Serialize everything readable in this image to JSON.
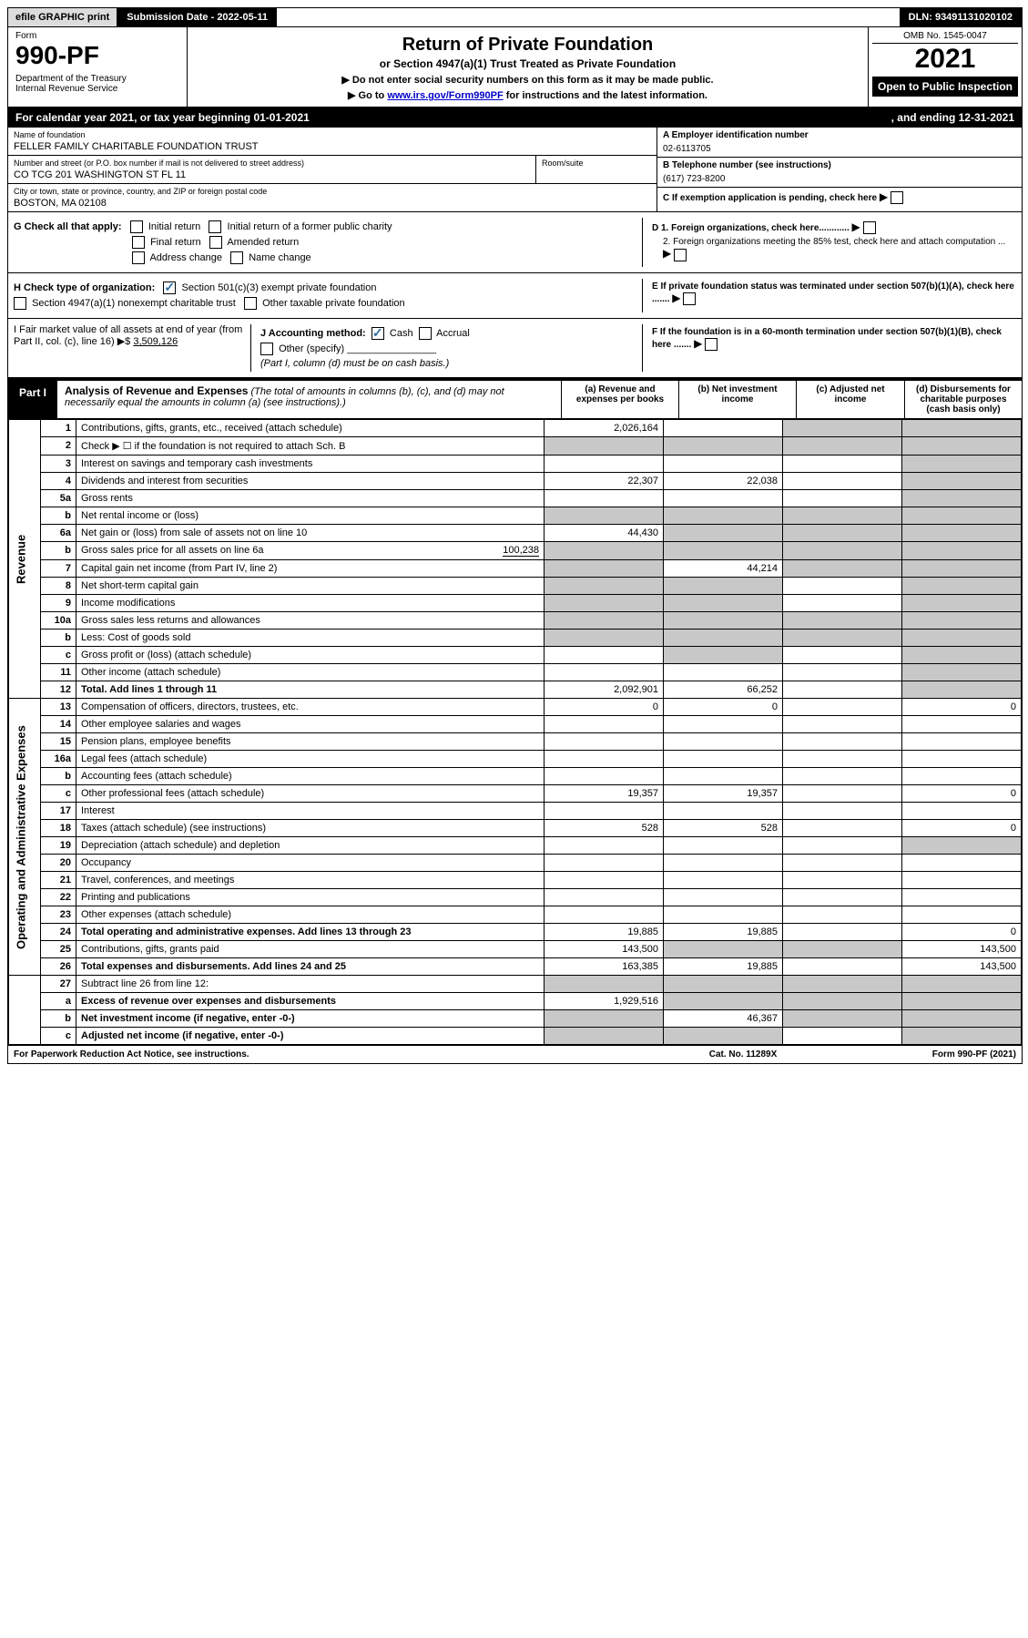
{
  "topbar": {
    "efile": "efile GRAPHIC print",
    "subdate_label": "Submission Date - 2022-05-11",
    "dln": "DLN: 93491131020102"
  },
  "header": {
    "form_label": "Form",
    "form_number": "990-PF",
    "dept": "Department of the Treasury\nInternal Revenue Service",
    "title": "Return of Private Foundation",
    "subtitle": "or Section 4947(a)(1) Trust Treated as Private Foundation",
    "note1": "▶ Do not enter social security numbers on this form as it may be made public.",
    "note2_pre": "▶ Go to ",
    "note2_link": "www.irs.gov/Form990PF",
    "note2_post": " for instructions and the latest information.",
    "omb": "OMB No. 1545-0047",
    "year": "2021",
    "open": "Open to Public Inspection"
  },
  "calendar": {
    "left": "For calendar year 2021, or tax year beginning 01-01-2021",
    "right": ", and ending 12-31-2021"
  },
  "info": {
    "name_label": "Name of foundation",
    "name_value": "FELLER FAMILY CHARITABLE FOUNDATION TRUST",
    "addr_label": "Number and street (or P.O. box number if mail is not delivered to street address)",
    "addr_value": "CO TCG 201 WASHINGTON ST FL 11",
    "room_label": "Room/suite",
    "city_label": "City or town, state or province, country, and ZIP or foreign postal code",
    "city_value": "BOSTON, MA  02108",
    "ein_label": "A Employer identification number",
    "ein_value": "02-6113705",
    "phone_label": "B Telephone number (see instructions)",
    "phone_value": "(617) 723-8200",
    "c_label": "C If exemption application is pending, check here",
    "d1_label": "D 1. Foreign organizations, check here............",
    "d2_label": "2. Foreign organizations meeting the 85% test, check here and attach computation ...",
    "e_label": "E If private foundation status was terminated under section 507(b)(1)(A), check here .......",
    "f_label": "F If the foundation is in a 60-month termination under section 507(b)(1)(B), check here .......",
    "g_label": "G Check all that apply:",
    "g_initial": "Initial return",
    "g_initial_former": "Initial return of a former public charity",
    "g_final": "Final return",
    "g_amended": "Amended return",
    "g_address": "Address change",
    "g_name": "Name change",
    "h_label": "H Check type of organization:",
    "h_501c3": "Section 501(c)(3) exempt private foundation",
    "h_4947": "Section 4947(a)(1) nonexempt charitable trust",
    "h_other": "Other taxable private foundation",
    "i_label": "I Fair market value of all assets at end of year (from Part II, col. (c), line 16) ▶$",
    "i_value": "3,509,126",
    "j_label": "J Accounting method:",
    "j_cash": "Cash",
    "j_accrual": "Accrual",
    "j_other": "Other (specify)",
    "j_note": "(Part I, column (d) must be on cash basis.)"
  },
  "part1": {
    "label": "Part I",
    "title": "Analysis of Revenue and Expenses",
    "title_note": "(The total of amounts in columns (b), (c), and (d) may not necessarily equal the amounts in column (a) (see instructions).)",
    "col_a": "(a) Revenue and expenses per books",
    "col_b": "(b) Net investment income",
    "col_c": "(c) Adjusted net income",
    "col_d": "(d) Disbursements for charitable purposes (cash basis only)"
  },
  "side_labels": {
    "revenue": "Revenue",
    "expenses": "Operating and Administrative Expenses"
  },
  "rows": [
    {
      "n": "1",
      "desc": "Contributions, gifts, grants, etc., received (attach schedule)",
      "a": "2,026,164",
      "b": "",
      "c": "grey",
      "d": "grey"
    },
    {
      "n": "2",
      "desc": "Check ▶ ☐ if the foundation is not required to attach Sch. B",
      "a": "grey",
      "b": "grey",
      "c": "grey",
      "d": "grey"
    },
    {
      "n": "3",
      "desc": "Interest on savings and temporary cash investments",
      "a": "",
      "b": "",
      "c": "",
      "d": "grey"
    },
    {
      "n": "4",
      "desc": "Dividends and interest from securities",
      "a": "22,307",
      "b": "22,038",
      "c": "",
      "d": "grey"
    },
    {
      "n": "5a",
      "desc": "Gross rents",
      "a": "",
      "b": "",
      "c": "",
      "d": "grey"
    },
    {
      "n": "b",
      "desc": "Net rental income or (loss)",
      "a": "grey",
      "b": "grey",
      "c": "grey",
      "d": "grey",
      "inline": true
    },
    {
      "n": "6a",
      "desc": "Net gain or (loss) from sale of assets not on line 10",
      "a": "44,430",
      "b": "grey",
      "c": "grey",
      "d": "grey"
    },
    {
      "n": "b",
      "desc": "Gross sales price for all assets on line 6a",
      "inline_val": "100,238",
      "a": "grey",
      "b": "grey",
      "c": "grey",
      "d": "grey"
    },
    {
      "n": "7",
      "desc": "Capital gain net income (from Part IV, line 2)",
      "a": "grey",
      "b": "44,214",
      "c": "grey",
      "d": "grey"
    },
    {
      "n": "8",
      "desc": "Net short-term capital gain",
      "a": "grey",
      "b": "grey",
      "c": "",
      "d": "grey"
    },
    {
      "n": "9",
      "desc": "Income modifications",
      "a": "grey",
      "b": "grey",
      "c": "",
      "d": "grey"
    },
    {
      "n": "10a",
      "desc": "Gross sales less returns and allowances",
      "a": "grey",
      "b": "grey",
      "c": "grey",
      "d": "grey",
      "inline": true
    },
    {
      "n": "b",
      "desc": "Less: Cost of goods sold",
      "a": "grey",
      "b": "grey",
      "c": "grey",
      "d": "grey",
      "inline": true
    },
    {
      "n": "c",
      "desc": "Gross profit or (loss) (attach schedule)",
      "a": "",
      "b": "grey",
      "c": "",
      "d": "grey"
    },
    {
      "n": "11",
      "desc": "Other income (attach schedule)",
      "a": "",
      "b": "",
      "c": "",
      "d": "grey"
    },
    {
      "n": "12",
      "desc": "Total. Add lines 1 through 11",
      "a": "2,092,901",
      "b": "66,252",
      "c": "",
      "d": "grey",
      "bold": true
    }
  ],
  "exp_rows": [
    {
      "n": "13",
      "desc": "Compensation of officers, directors, trustees, etc.",
      "a": "0",
      "b": "0",
      "c": "",
      "d": "0"
    },
    {
      "n": "14",
      "desc": "Other employee salaries and wages",
      "a": "",
      "b": "",
      "c": "",
      "d": ""
    },
    {
      "n": "15",
      "desc": "Pension plans, employee benefits",
      "a": "",
      "b": "",
      "c": "",
      "d": ""
    },
    {
      "n": "16a",
      "desc": "Legal fees (attach schedule)",
      "a": "",
      "b": "",
      "c": "",
      "d": ""
    },
    {
      "n": "b",
      "desc": "Accounting fees (attach schedule)",
      "a": "",
      "b": "",
      "c": "",
      "d": ""
    },
    {
      "n": "c",
      "desc": "Other professional fees (attach schedule)",
      "a": "19,357",
      "b": "19,357",
      "c": "",
      "d": "0"
    },
    {
      "n": "17",
      "desc": "Interest",
      "a": "",
      "b": "",
      "c": "",
      "d": ""
    },
    {
      "n": "18",
      "desc": "Taxes (attach schedule) (see instructions)",
      "a": "528",
      "b": "528",
      "c": "",
      "d": "0"
    },
    {
      "n": "19",
      "desc": "Depreciation (attach schedule) and depletion",
      "a": "",
      "b": "",
      "c": "",
      "d": "grey"
    },
    {
      "n": "20",
      "desc": "Occupancy",
      "a": "",
      "b": "",
      "c": "",
      "d": ""
    },
    {
      "n": "21",
      "desc": "Travel, conferences, and meetings",
      "a": "",
      "b": "",
      "c": "",
      "d": ""
    },
    {
      "n": "22",
      "desc": "Printing and publications",
      "a": "",
      "b": "",
      "c": "",
      "d": ""
    },
    {
      "n": "23",
      "desc": "Other expenses (attach schedule)",
      "a": "",
      "b": "",
      "c": "",
      "d": ""
    },
    {
      "n": "24",
      "desc": "Total operating and administrative expenses. Add lines 13 through 23",
      "a": "19,885",
      "b": "19,885",
      "c": "",
      "d": "0",
      "bold": true
    },
    {
      "n": "25",
      "desc": "Contributions, gifts, grants paid",
      "a": "143,500",
      "b": "grey",
      "c": "grey",
      "d": "143,500"
    },
    {
      "n": "26",
      "desc": "Total expenses and disbursements. Add lines 24 and 25",
      "a": "163,385",
      "b": "19,885",
      "c": "",
      "d": "143,500",
      "bold": true
    }
  ],
  "final_rows": [
    {
      "n": "27",
      "desc": "Subtract line 26 from line 12:",
      "a": "grey",
      "b": "grey",
      "c": "grey",
      "d": "grey"
    },
    {
      "n": "a",
      "desc": "Excess of revenue over expenses and disbursements",
      "a": "1,929,516",
      "b": "grey",
      "c": "grey",
      "d": "grey",
      "bold": true
    },
    {
      "n": "b",
      "desc": "Net investment income (if negative, enter -0-)",
      "a": "grey",
      "b": "46,367",
      "c": "grey",
      "d": "grey",
      "bold": true
    },
    {
      "n": "c",
      "desc": "Adjusted net income (if negative, enter -0-)",
      "a": "grey",
      "b": "grey",
      "c": "",
      "d": "grey",
      "bold": true
    }
  ],
  "footer": {
    "left": "For Paperwork Reduction Act Notice, see instructions.",
    "mid": "Cat. No. 11289X",
    "right": "Form 990-PF (2021)"
  }
}
